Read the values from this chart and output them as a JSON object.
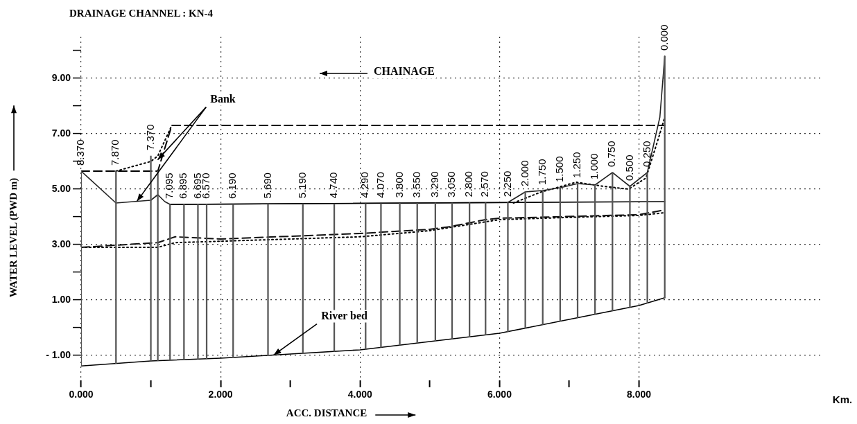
{
  "chart_data": {
    "type": "line",
    "title": "DRAINAGE CHANNEL : KN-4",
    "xlabel": "ACC. DISTANCE",
    "ylabel": "WATER LEVEL (PWD m)",
    "xlim": [
      0,
      10.6
    ],
    "ylim": [
      -1.9,
      10.5
    ],
    "xticks": [
      {
        "value": 0,
        "label": "0.000"
      },
      {
        "value": 1,
        "label": null
      },
      {
        "value": 2,
        "label": "2.000"
      },
      {
        "value": 3,
        "label": null
      },
      {
        "value": 4,
        "label": "4.000"
      },
      {
        "value": 5,
        "label": null
      },
      {
        "value": 6,
        "label": "6.000"
      },
      {
        "value": 7,
        "label": null
      },
      {
        "value": 8,
        "label": "8.000"
      }
    ],
    "yticks": [
      {
        "value": -1,
        "label": "- 1.00"
      },
      {
        "value": 0,
        "label": null
      },
      {
        "value": 1,
        "label": "1.00"
      },
      {
        "value": 2,
        "label": null
      },
      {
        "value": 3,
        "label": "3.00"
      },
      {
        "value": 4,
        "label": null
      },
      {
        "value": 5,
        "label": "5.00"
      },
      {
        "value": 6,
        "label": null
      },
      {
        "value": 7,
        "label": "7.00"
      },
      {
        "value": 8,
        "label": null
      },
      {
        "value": 9,
        "label": "9.00"
      },
      {
        "value": 10,
        "label": null
      }
    ],
    "grid": true,
    "legend": false,
    "marker": "none",
    "series": [
      {
        "type": "bar",
        "color": "#555555",
        "x": [
          0,
          0.5,
          1.0,
          1.1,
          1.275,
          1.475,
          1.675,
          1.8,
          2.18,
          2.68,
          3.18,
          3.63,
          4.08,
          4.3,
          4.57,
          4.82,
          5.08,
          5.32,
          5.57,
          5.8,
          6.12,
          6.37,
          6.62,
          6.87,
          7.12,
          7.37,
          7.62,
          7.87,
          8.12,
          8.37
        ],
        "base": [
          -1.38,
          -1.29,
          -1.2,
          -1.19,
          -1.17,
          -1.15,
          -1.13,
          -1.12,
          -1.07,
          -1.0,
          -0.92,
          -0.86,
          -0.78,
          -0.71,
          -0.63,
          -0.55,
          -0.48,
          -0.4,
          -0.33,
          -0.26,
          -0.14,
          -0.02,
          0.11,
          0.24,
          0.36,
          0.49,
          0.61,
          0.74,
          0.88,
          1.08
        ],
        "values": [
          7.03,
          6.94,
          7.4,
          6.84,
          5.62,
          5.6,
          5.58,
          5.57,
          5.52,
          5.46,
          5.39,
          5.33,
          5.26,
          5.19,
          5.12,
          5.04,
          4.98,
          4.9,
          4.84,
          4.77,
          4.66,
          4.92,
          4.84,
          4.81,
          4.84,
          4.66,
          4.99,
          4.36,
          4.72,
          8.72
        ]
      },
      {
        "color": "#000000",
        "line_style": "solid",
        "x": [
          0,
          1,
          2,
          3,
          4,
          5,
          6,
          7,
          8,
          8.37
        ],
        "values": [
          -1.38,
          -1.2,
          -1.1,
          -0.95,
          -0.8,
          -0.5,
          -0.2,
          0.3,
          0.8,
          1.08
        ]
      },
      {
        "color": "#000000",
        "line_style": "solid",
        "x": [
          1.275,
          8.37
        ],
        "values": [
          4.45,
          4.55
        ]
      },
      {
        "color": "#222222",
        "line_style": "solid",
        "x": [
          0,
          0.5,
          1.0,
          1.1,
          1.2,
          1.275,
          6.12,
          6.37,
          6.62,
          6.87,
          7.12,
          7.37,
          7.62,
          7.87,
          8.12,
          8.3,
          8.37
        ],
        "values": [
          5.65,
          4.5,
          4.6,
          4.8,
          4.55,
          4.45,
          4.52,
          4.9,
          4.95,
          5.05,
          5.2,
          5.15,
          5.6,
          5.1,
          5.6,
          7.6,
          9.8
        ]
      },
      {
        "color": "#000000",
        "line_style": "dashed",
        "x": [
          0,
          1.1,
          1.3,
          8.37
        ],
        "values": [
          5.65,
          5.65,
          7.3,
          7.3
        ]
      },
      {
        "color": "#000000",
        "line_style": "dotted",
        "x": [
          0.5,
          1.0,
          1.1,
          1.3
        ],
        "values": [
          5.65,
          6.0,
          6.2,
          7.3
        ]
      },
      {
        "color": "#000000",
        "line_style": "dotted",
        "x": [
          6.2,
          6.6,
          7.1,
          7.5,
          7.85,
          8.1,
          8.3,
          8.37
        ],
        "values": [
          4.5,
          4.9,
          5.25,
          5.1,
          5.0,
          5.4,
          7.0,
          7.6
        ]
      },
      {
        "color": "#111111",
        "line_style": "dashed",
        "x": [
          0,
          1.1,
          1.35,
          2,
          3,
          4,
          5,
          5.3,
          5.8,
          6,
          6.8,
          8,
          8.37
        ],
        "values": [
          2.9,
          3.07,
          3.28,
          3.2,
          3.3,
          3.4,
          3.55,
          3.65,
          3.9,
          3.95,
          4.0,
          4.08,
          4.25
        ]
      },
      {
        "color": "#000000",
        "line_style": "dotted",
        "x": [
          0,
          1.1,
          1.35,
          2,
          3,
          4,
          5,
          6,
          7,
          8,
          8.37
        ],
        "values": [
          2.9,
          2.9,
          3.07,
          3.12,
          3.2,
          3.28,
          3.5,
          3.9,
          3.98,
          4.05,
          4.15
        ]
      }
    ],
    "annotations": [
      {
        "text": "8.370",
        "x": 0,
        "y": 5.65
      },
      {
        "text": "7.870",
        "x": 0.5,
        "y": 5.65
      },
      {
        "text": "7.370",
        "x": 1.0,
        "y": 6.2
      },
      {
        "text": "7.095",
        "x": 1.275,
        "y": 4.45
      },
      {
        "text": "6.895",
        "x": 1.475,
        "y": 4.45
      },
      {
        "text": "6.695",
        "x": 1.675,
        "y": 4.45
      },
      {
        "text": "6.570",
        "x": 1.8,
        "y": 4.45
      },
      {
        "text": "6.190",
        "x": 2.18,
        "y": 4.45
      },
      {
        "text": "5.690",
        "x": 2.68,
        "y": 4.46
      },
      {
        "text": "5.190",
        "x": 3.18,
        "y": 4.47
      },
      {
        "text": "4.740",
        "x": 3.63,
        "y": 4.47
      },
      {
        "text": "4.290",
        "x": 4.08,
        "y": 4.48
      },
      {
        "text": "4.070",
        "x": 4.3,
        "y": 4.48
      },
      {
        "text": "3.800",
        "x": 4.57,
        "y": 4.49
      },
      {
        "text": "3.550",
        "x": 4.82,
        "y": 4.49
      },
      {
        "text": "3.290",
        "x": 5.08,
        "y": 4.5
      },
      {
        "text": "3.050",
        "x": 5.32,
        "y": 4.5
      },
      {
        "text": "2.800",
        "x": 5.57,
        "y": 4.51
      },
      {
        "text": "2.570",
        "x": 5.8,
        "y": 4.51
      },
      {
        "text": "2.250",
        "x": 6.12,
        "y": 4.52
      },
      {
        "text": "2.000",
        "x": 6.37,
        "y": 4.9
      },
      {
        "text": "1.750",
        "x": 6.62,
        "y": 4.95
      },
      {
        "text": "1.500",
        "x": 6.87,
        "y": 5.05
      },
      {
        "text": "1.250",
        "x": 7.12,
        "y": 5.2
      },
      {
        "text": "1.000",
        "x": 7.37,
        "y": 5.15
      },
      {
        "text": "0.750",
        "x": 7.62,
        "y": 5.6
      },
      {
        "text": "0.500",
        "x": 7.87,
        "y": 5.1
      },
      {
        "text": "0.250",
        "x": 8.12,
        "y": 5.6
      },
      {
        "text": "0.000",
        "x": 8.37,
        "y": 9.8
      },
      {
        "text": "Bank",
        "x": 0.8,
        "y": 4.56
      },
      {
        "text": "River bed",
        "x": 2.76,
        "y": -0.99
      },
      "CHAINAGE",
      "Km."
    ]
  }
}
